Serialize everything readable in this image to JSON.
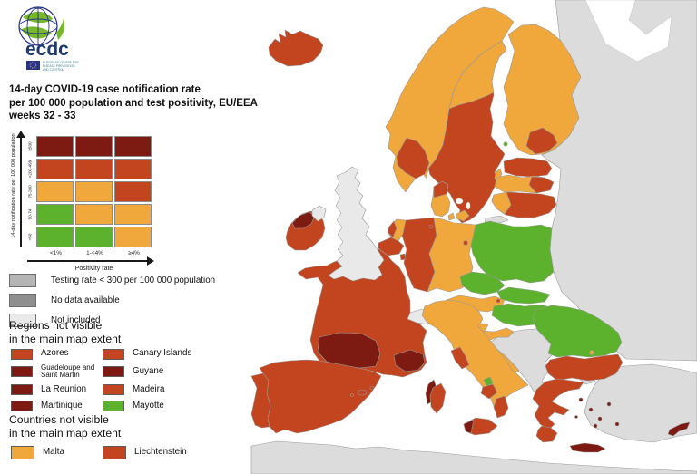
{
  "logo": {
    "wordmark": "ecdc",
    "org_line1": "EUROPEAN CENTRE FOR",
    "org_line2": "DISEASE PREVENTION",
    "org_line3": "AND CONTROL"
  },
  "title": {
    "line1": "14-day COVID-19 case notification rate",
    "line2": "per 100 000 population and test positivity, EU/EEA",
    "line3": "weeks 32 - 33"
  },
  "matrix": {
    "y_axis_label": "14-day notification rate per 100 000 population",
    "x_axis_label": "Positivity rate",
    "row_labels": [
      "≥500",
      ">200-499",
      "75-200",
      "50-74",
      "<50"
    ],
    "col_labels": [
      "<1%",
      "1-<4%",
      "≥4%"
    ],
    "cells": [
      [
        "darkred",
        "darkred",
        "darkred"
      ],
      [
        "red",
        "red",
        "red"
      ],
      [
        "orange",
        "orange",
        "red"
      ],
      [
        "green",
        "orange",
        "orange"
      ],
      [
        "green",
        "green",
        "orange"
      ]
    ]
  },
  "legend": [
    {
      "label": "Testing rate < 300 per 100 000 population",
      "category": "low-testing"
    },
    {
      "label": "No data available",
      "category": "no-data"
    },
    {
      "label": "Not included",
      "category": "not-included"
    }
  ],
  "regions_section": {
    "heading_line1": "Regions not visible",
    "heading_line2": "in the main map extent",
    "items": [
      {
        "label": "Azores",
        "category": "red",
        "small": false
      },
      {
        "label": "Canary Islands",
        "category": "red",
        "small": false
      },
      {
        "label": "Guadeloupe and Saint Martin",
        "category": "darkred",
        "small": true
      },
      {
        "label": "Guyane",
        "category": "darkred",
        "small": false
      },
      {
        "label": "La Reunion",
        "category": "darkred",
        "small": false
      },
      {
        "label": "Madeira",
        "category": "red",
        "small": false
      },
      {
        "label": "Martinique",
        "category": "darkred",
        "small": false
      },
      {
        "label": "Mayotte",
        "category": "green",
        "small": false
      }
    ]
  },
  "countries_section": {
    "heading_line1": "Countries not visible",
    "heading_line2": "in the main map extent",
    "items": [
      {
        "label": "Malta",
        "category": "orange",
        "small": false
      },
      {
        "label": "Liechtenstein",
        "category": "red",
        "small": false
      }
    ]
  },
  "palette": {
    "green": "#5CB22D",
    "orange": "#F0A73C",
    "red": "#C2451F",
    "darkred": "#7D1A11",
    "low-testing": "#B5B5B5",
    "no-data": "#8F8F8F",
    "not-included": "#E9E9E9",
    "non-eu": "#DCDCDC",
    "sea": "#FFFFFF"
  },
  "map": {
    "countries": {
      "iceland": "red",
      "norway": "orange",
      "norway-west": "red",
      "sweden": "red",
      "sweden-north": "orange",
      "gotland": "orange",
      "aland": "green",
      "finland": "orange",
      "finland-se": "red",
      "estonia": "red",
      "latvia": "orange",
      "latvia-east": "red",
      "lithuania": "red",
      "lithuania-west": "orange",
      "denmark": "orange",
      "denmark-north": "red",
      "zealand": "orange",
      "funen": "orange",
      "poland": "green",
      "germany-west": "red",
      "germany-east": "orange",
      "berlin": "red",
      "hamburg": "red",
      "netherlands": "orange",
      "netherlands-coast": "red",
      "belgium": "red",
      "luxembourg": "red",
      "france": "red",
      "france-south-west": "darkred",
      "france-south-east": "darkred",
      "corsica": "darkred",
      "switzerland": "not-included",
      "austria": "orange",
      "vienna": "red",
      "czechia": "green",
      "slovakia": "green",
      "hungary": "green",
      "slovenia": "orange",
      "croatia": "orange",
      "italy": "orange",
      "italy-tuscany": "red",
      "italy-molise": "green",
      "italy-campania": "red",
      "italy-calabria": "red",
      "sicily": "red",
      "sicily-west": "darkred",
      "sardinia": "red",
      "spain": "red",
      "balearics": "red",
      "portugal": "red",
      "ireland": "red",
      "ireland-northwest": "darkred",
      "northern-ireland": "not-included",
      "uk": "not-included",
      "romania": "green",
      "bucharest": "orange",
      "bulgaria": "red",
      "greece": "red",
      "peloponnese": "red",
      "crete": "darkred",
      "aegean-islands": "darkred",
      "cyprus": "darkred",
      "russia-east": "non-eu",
      "kaliningrad": "non-eu",
      "balkans": "non-eu",
      "turkey": "non-eu",
      "turkey-europe": "non-eu",
      "north-africa": "non-eu"
    }
  }
}
